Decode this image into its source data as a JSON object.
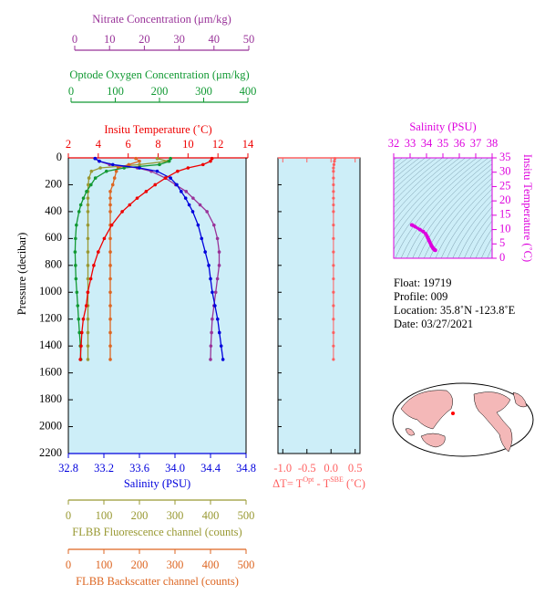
{
  "chart_data": {
    "type": "profile",
    "pressure_label": "Pressure (decibar)",
    "ylim": [
      0,
      2200
    ],
    "yticks": [
      0,
      200,
      400,
      600,
      800,
      1000,
      1200,
      1400,
      1600,
      1800,
      2000,
      2200
    ],
    "pressure": [
      5,
      25,
      50,
      75,
      100,
      150,
      200,
      250,
      300,
      350,
      400,
      500,
      600,
      700,
      800,
      900,
      1000,
      1100,
      1200,
      1300,
      1400,
      1500
    ],
    "series": [
      {
        "name": "Nitrate Concentration (μm/kg)",
        "color": "#993399",
        "xlim": [
          0,
          50
        ],
        "xticks": [
          0,
          10,
          20,
          30,
          40,
          50
        ],
        "values": [
          6,
          7,
          10,
          18,
          22,
          26,
          29,
          32,
          34,
          36,
          38,
          40,
          41,
          41.5,
          41.5,
          41,
          40.5,
          40,
          39.5,
          39.3,
          39.1,
          39
        ]
      },
      {
        "name": "Optode Oxygen Concentration (μm/kg)",
        "color": "#119933",
        "xlim": [
          0,
          400
        ],
        "xticks": [
          0,
          100,
          200,
          300,
          400
        ],
        "values": [
          225,
          222,
          200,
          120,
          80,
          55,
          45,
          35,
          28,
          22,
          18,
          12,
          10,
          9,
          10,
          11,
          13,
          15,
          17,
          19,
          21,
          22
        ]
      },
      {
        "name": "Insitu Temperature (˚C)",
        "color": "#ee0000",
        "xlim": [
          2,
          14
        ],
        "xticks": [
          2,
          4,
          6,
          8,
          10,
          12,
          14
        ],
        "values": [
          11.6,
          11.5,
          11.0,
          10.0,
          9.3,
          8.5,
          7.8,
          7.2,
          6.6,
          6.1,
          5.6,
          4.9,
          4.4,
          4.0,
          3.7,
          3.5,
          3.3,
          3.2,
          3.0,
          2.9,
          2.85,
          2.8
        ]
      },
      {
        "name": "Salinity (PSU)",
        "color": "#0000dd",
        "xlim": [
          32.8,
          34.8
        ],
        "xticks": [
          32.8,
          33.2,
          33.6,
          {
            "value": 34,
            "label": "34.0"
          },
          34.4,
          34.8
        ],
        "values": [
          33.1,
          33.15,
          33.3,
          33.6,
          33.8,
          33.95,
          34.02,
          34.07,
          34.12,
          34.16,
          34.2,
          34.26,
          34.3,
          34.34,
          34.38,
          34.4,
          34.42,
          34.45,
          34.48,
          34.5,
          34.52,
          34.54
        ]
      },
      {
        "name": "FLBB Fluorescence channel (counts)",
        "color": "#999933",
        "xlim": [
          0,
          500
        ],
        "xticks": [
          0,
          100,
          200,
          300,
          400,
          500
        ],
        "values": [
          250,
          280,
          200,
          90,
          65,
          58,
          56,
          55,
          55,
          55,
          55,
          55,
          55,
          55,
          55,
          55,
          55,
          55,
          55,
          55,
          55,
          55
        ]
      },
      {
        "name": "FLBB Backscatter channel (counts)",
        "color": "#dd6622",
        "xlim": [
          0,
          500
        ],
        "xticks": [
          0,
          100,
          200,
          300,
          400,
          500
        ],
        "values": [
          190,
          200,
          170,
          140,
          135,
          130,
          125,
          118,
          118,
          118,
          118,
          118,
          118,
          118,
          118,
          118,
          118,
          118,
          118,
          118,
          118,
          118
        ]
      }
    ],
    "delta_t": {
      "label_parts": [
        "ΔT= T",
        "Opt",
        " - T",
        "SBE",
        " (˚C)"
      ],
      "color": "#ff6060",
      "xlim": [
        -1.1,
        0.6
      ],
      "xticks": [
        {
          "value": -1,
          "label": "-1.0"
        },
        -0.5,
        {
          "value": 0,
          "label": "0.0"
        },
        0.5
      ],
      "values": [
        0.08,
        0.07,
        0.06,
        0.05,
        0.05,
        0.05,
        0.05,
        0.05,
        0.05,
        0.05,
        0.05,
        0.05,
        0.05,
        0.05,
        0.05,
        0.05,
        0.05,
        0.05,
        0.05,
        0.05,
        0.05,
        0.05
      ]
    },
    "ts_diagram": {
      "x_label": "Salinity (PSU)",
      "y_label": "Insitu Temperature (˚C)",
      "color": "#dd00dd",
      "xlim": [
        32,
        38
      ],
      "xticks": [
        32,
        33,
        34,
        35,
        36,
        37,
        38
      ],
      "ylim": [
        0,
        35
      ],
      "yticks": [
        0,
        5,
        10,
        15,
        20,
        25,
        30,
        35
      ]
    },
    "info": [
      "Float:  19719",
      "Profile:  009",
      "Location:  35.8˚N  -123.8˚E",
      "Date:  03/27/2021"
    ]
  }
}
